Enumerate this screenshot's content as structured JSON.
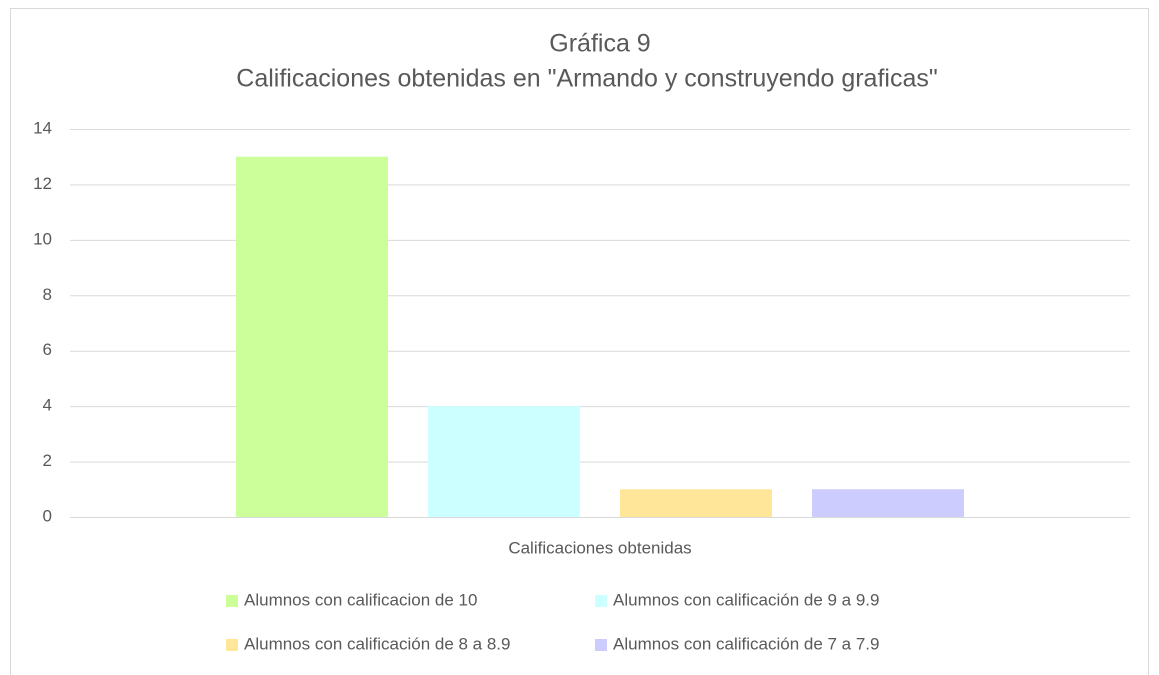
{
  "chart_data": {
    "type": "bar",
    "title": "Gráfica 9",
    "subtitle": "Calificaciones obtenidas en \"Armando y construyendo graficas\"",
    "categories": [
      "Calificaciones obtenidas"
    ],
    "series": [
      {
        "name": "Alumnos con calificacion de 10",
        "color": "#ccff99",
        "values": [
          13
        ]
      },
      {
        "name": "Alumnos con calificación de 9 a 9.9",
        "color": "#ccffff",
        "values": [
          4
        ]
      },
      {
        "name": "Alumnos con calificación de 8 a 8.9",
        "color": "#ffe699",
        "values": [
          1
        ]
      },
      {
        "name": "Alumnos con calificación de 7 a 7.9",
        "color": "#ccccff",
        "values": [
          1
        ]
      }
    ],
    "ylim": [
      0,
      14
    ],
    "yticks": [
      0,
      2,
      4,
      6,
      8,
      10,
      12,
      14
    ],
    "grid": true,
    "legend": "bottom"
  }
}
